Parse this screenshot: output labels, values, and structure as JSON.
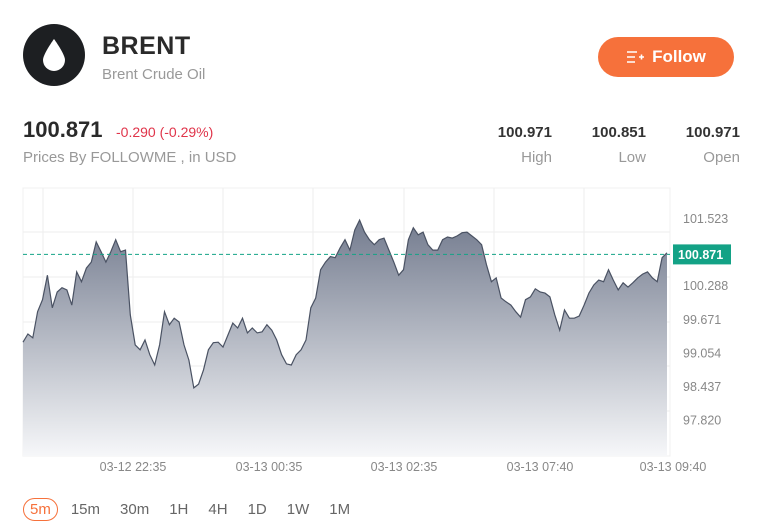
{
  "header": {
    "symbol": "BRENT",
    "name": "Brent Crude Oil",
    "follow_label": "Follow",
    "logo_icon": "oil-drop-icon"
  },
  "quote": {
    "price": "100.871",
    "change": "-0.290 (-0.29%)",
    "source": "Prices By FOLLOWME , in USD",
    "stats": [
      {
        "value": "100.971",
        "label": "High"
      },
      {
        "value": "100.851",
        "label": "Low"
      },
      {
        "value": "100.971",
        "label": "Open"
      }
    ]
  },
  "colors": {
    "accent": "#f6713b",
    "down": "#e0344a",
    "current_price": "#13a286",
    "line": "#4a5263"
  },
  "chart_data": {
    "type": "area",
    "ylim": [
      97.17,
      102.09
    ],
    "y_ticks": [
      "101.523",
      "100.288",
      "99.671",
      "99.054",
      "98.437",
      "97.820"
    ],
    "x_ticks": [
      "03-12 22:35",
      "03-13 00:35",
      "03-13 02:35",
      "03-13 07:40",
      "03-13 09:40"
    ],
    "current_price": 100.871,
    "current_price_label": "100.871",
    "grid": true,
    "values": [
      99.26,
      99.41,
      99.34,
      99.82,
      100.04,
      100.49,
      99.89,
      100.18,
      100.26,
      100.22,
      99.94,
      100.55,
      100.37,
      100.62,
      100.73,
      101.1,
      100.92,
      100.73,
      100.92,
      101.14,
      100.92,
      100.95,
      99.76,
      99.21,
      99.12,
      99.3,
      99.03,
      98.84,
      99.21,
      99.82,
      99.58,
      99.7,
      99.63,
      99.21,
      98.93,
      98.42,
      98.49,
      98.75,
      99.12,
      99.25,
      99.26,
      99.17,
      99.39,
      99.61,
      99.52,
      99.7,
      99.43,
      99.52,
      99.43,
      99.45,
      99.58,
      99.48,
      99.3,
      99.03,
      98.86,
      98.84,
      99.03,
      99.12,
      99.3,
      99.89,
      100.07,
      100.59,
      100.73,
      100.83,
      100.81,
      100.99,
      101.14,
      100.95,
      101.32,
      101.5,
      101.28,
      101.14,
      101.05,
      101.14,
      101.17,
      100.95,
      100.73,
      100.49,
      100.59,
      101.14,
      101.36,
      101.23,
      101.28,
      101.05,
      100.95,
      100.95,
      101.14,
      101.19,
      101.17,
      101.21,
      101.27,
      101.28,
      101.21,
      101.14,
      101.05,
      100.68,
      100.37,
      100.44,
      100.07,
      100.0,
      99.94,
      99.82,
      99.72,
      100.04,
      100.09,
      100.24,
      100.18,
      100.16,
      100.09,
      99.76,
      99.48,
      99.85,
      99.7,
      99.7,
      99.74,
      99.94,
      100.16,
      100.31,
      100.4,
      100.37,
      100.59,
      100.4,
      100.22,
      100.35,
      100.27,
      100.35,
      100.44,
      100.51,
      100.55,
      100.44,
      100.37,
      100.81,
      100.9
    ]
  },
  "periods": [
    {
      "label": "5m",
      "active": true
    },
    {
      "label": "15m"
    },
    {
      "label": "30m"
    },
    {
      "label": "1H"
    },
    {
      "label": "4H"
    },
    {
      "label": "1D"
    },
    {
      "label": "1W"
    },
    {
      "label": "1M"
    }
  ]
}
